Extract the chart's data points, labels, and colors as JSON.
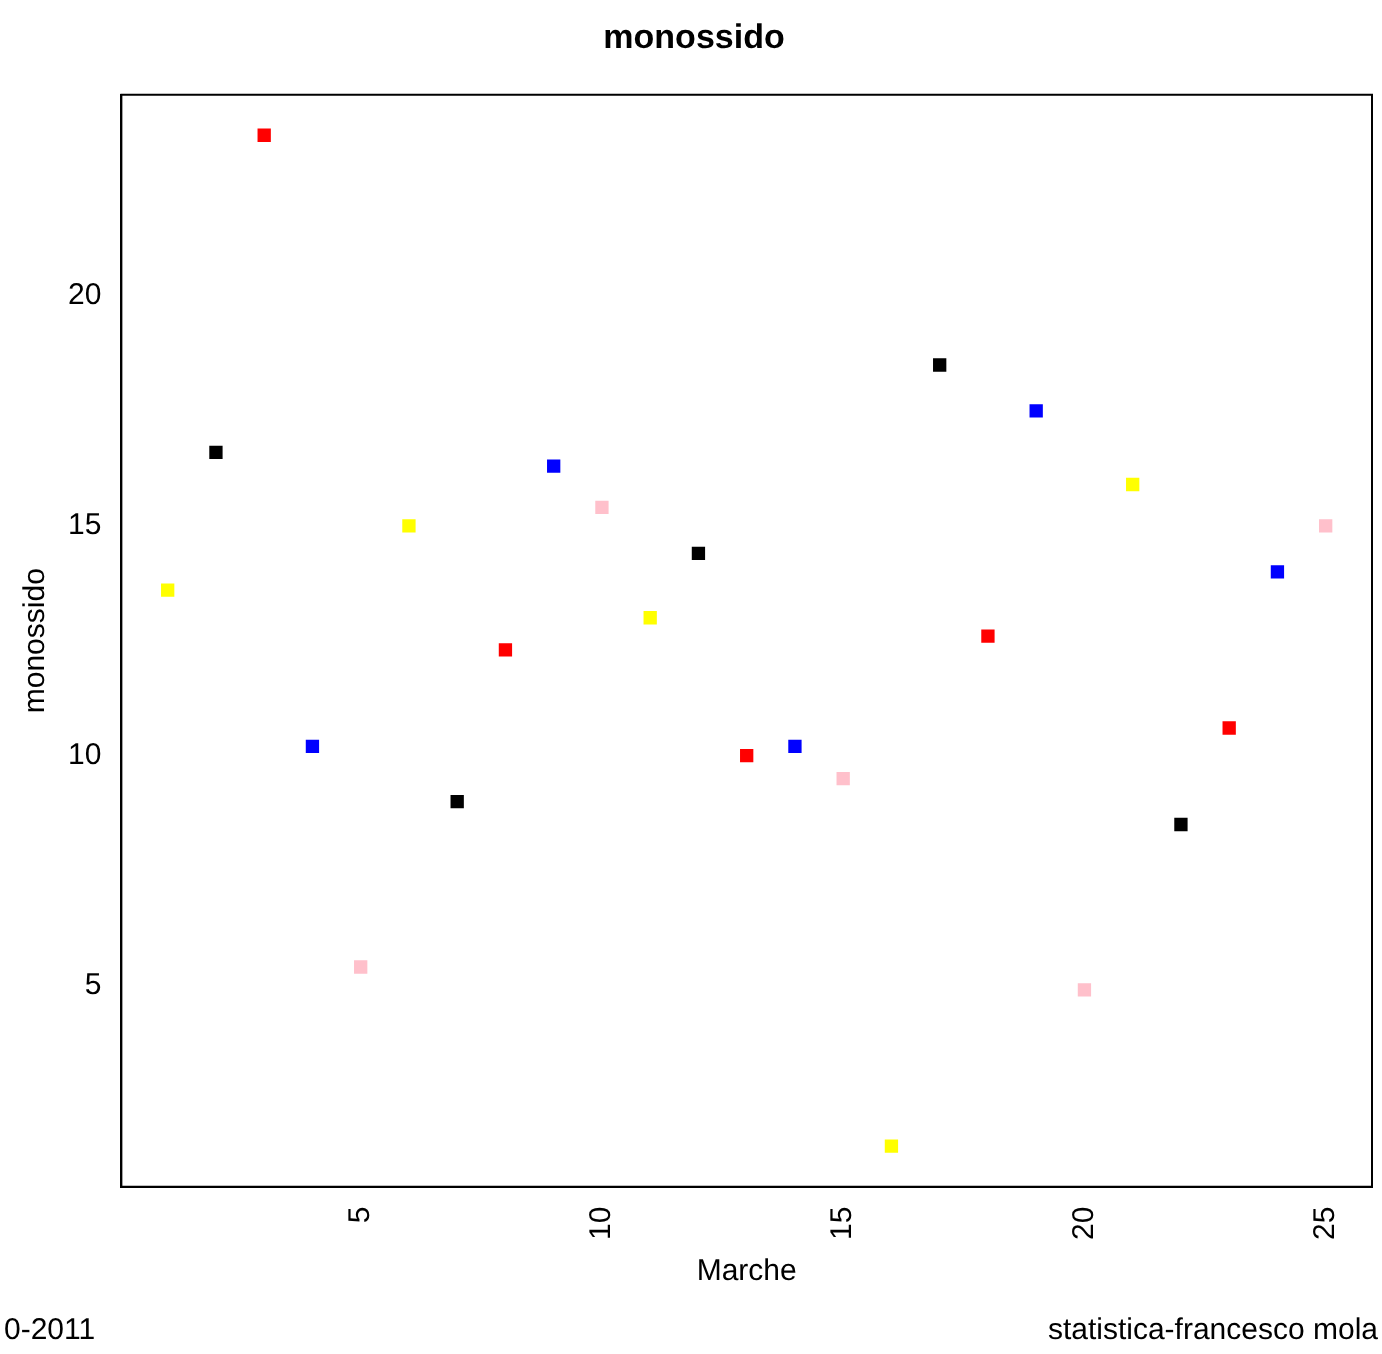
{
  "chart_data": {
    "type": "scatter",
    "title": "monossido",
    "xlabel": "Marche",
    "ylabel": "monossido",
    "annotations": [
      "0-2011",
      "statistica-francesco mola"
    ],
    "x": [
      1,
      2,
      3,
      4,
      5,
      6,
      7,
      8,
      9,
      10,
      11,
      12,
      13,
      14,
      15,
      16,
      17,
      18,
      19,
      20,
      21,
      22,
      23,
      24,
      25
    ],
    "series": [
      {
        "values": [
          13.6,
          16.6,
          23.5,
          10.2,
          5.4,
          15.0,
          9.0,
          12.3,
          16.3,
          15.4,
          13.0,
          14.4,
          10.0,
          10.2,
          9.5,
          1.5,
          18.5,
          12.6,
          17.5,
          4.9,
          15.9,
          8.5,
          10.6,
          14.0,
          15.0
        ],
        "colors": [
          "#ffff00",
          "#000000",
          "#ff0000",
          "#0000ff",
          "#ffc0cb",
          "#ffff00",
          "#000000",
          "#ff0000",
          "#0000ff",
          "#ffc0cb",
          "#ffff00",
          "#000000",
          "#ff0000",
          "#0000ff",
          "#ffc0cb",
          "#ffff00",
          "#000000",
          "#ff0000",
          "#0000ff",
          "#ffc0cb",
          "#ffff00",
          "#000000",
          "#ff0000",
          "#0000ff",
          "#ffc0cb"
        ]
      }
    ],
    "marker": "square",
    "xlim": [
      0.04,
      25.96
    ],
    "xticks": [
      5,
      10,
      15,
      20,
      25
    ],
    "ylim": [
      0.62,
      24.38
    ],
    "yticks": [
      5,
      10,
      15,
      20
    ],
    "grid": false,
    "legend": false
  }
}
